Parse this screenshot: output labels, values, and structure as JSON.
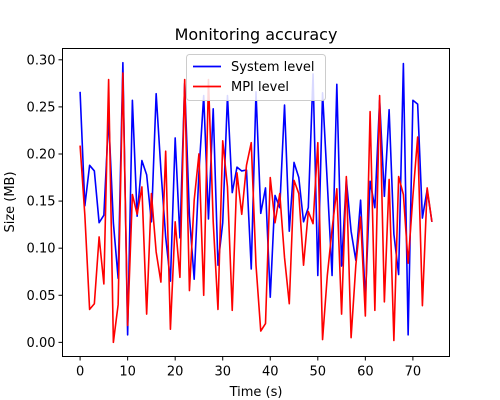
{
  "chart_data": {
    "type": "line",
    "title": "Monitoring accuracy",
    "xlabel": "Time (s)",
    "ylabel": "Size (MB)",
    "xlim": [
      -3.7,
      77.7
    ],
    "ylim": [
      -0.015,
      0.312
    ],
    "xticks": [
      0,
      10,
      20,
      30,
      40,
      50,
      60,
      70
    ],
    "xtick_labels": [
      "0",
      "10",
      "20",
      "30",
      "40",
      "50",
      "60",
      "70"
    ],
    "yticks": [
      0.0,
      0.05,
      0.1,
      0.15,
      0.2,
      0.25,
      0.3
    ],
    "ytick_labels": [
      "0.00",
      "0.05",
      "0.10",
      "0.15",
      "0.20",
      "0.25",
      "0.30"
    ],
    "grid": false,
    "legend_position": "top-center",
    "x": [
      0,
      1,
      2,
      3,
      4,
      5,
      6,
      7,
      8,
      9,
      10,
      11,
      12,
      13,
      14,
      15,
      16,
      17,
      18,
      19,
      20,
      21,
      22,
      23,
      24,
      25,
      26,
      27,
      28,
      29,
      30,
      31,
      32,
      33,
      34,
      35,
      36,
      37,
      38,
      39,
      40,
      41,
      42,
      43,
      44,
      45,
      46,
      47,
      48,
      49,
      50,
      51,
      52,
      53,
      54,
      55,
      56,
      57,
      58,
      59,
      60,
      61,
      62,
      63,
      64,
      65,
      66,
      67,
      68,
      69,
      70,
      71,
      72,
      73,
      74
    ],
    "series": [
      {
        "name": "System level",
        "color": "#0000ff",
        "values": [
          0.266,
          0.145,
          0.188,
          0.182,
          0.127,
          0.135,
          0.239,
          0.127,
          0.068,
          0.297,
          0.008,
          0.257,
          0.134,
          0.193,
          0.178,
          0.128,
          0.264,
          0.183,
          0.112,
          0.065,
          0.217,
          0.111,
          0.275,
          0.134,
          0.067,
          0.181,
          0.262,
          0.131,
          0.248,
          0.082,
          0.127,
          0.262,
          0.159,
          0.186,
          0.182,
          0.183,
          0.078,
          0.266,
          0.137,
          0.164,
          0.048,
          0.156,
          0.143,
          0.252,
          0.118,
          0.191,
          0.175,
          0.128,
          0.143,
          0.285,
          0.071,
          0.265,
          0.169,
          0.071,
          0.274,
          0.081,
          0.173,
          0.118,
          0.087,
          0.151,
          0.045,
          0.171,
          0.143,
          0.257,
          0.155,
          0.247,
          0.115,
          0.072,
          0.296,
          0.008,
          0.257,
          0.253,
          0.132,
          0.162,
          0.128
        ]
      },
      {
        "name": "MPI level",
        "color": "#ff0000",
        "values": [
          0.209,
          0.135,
          0.035,
          0.041,
          0.112,
          0.062,
          0.279,
          0.0,
          0.04,
          0.286,
          0.018,
          0.157,
          0.136,
          0.165,
          0.03,
          0.158,
          0.096,
          0.064,
          0.203,
          0.014,
          0.128,
          0.069,
          0.279,
          0.055,
          0.151,
          0.2,
          0.05,
          0.279,
          0.128,
          0.035,
          0.214,
          0.165,
          0.034,
          0.18,
          0.136,
          0.188,
          0.212,
          0.082,
          0.012,
          0.02,
          0.175,
          0.127,
          0.158,
          0.09,
          0.041,
          0.172,
          0.158,
          0.082,
          0.139,
          0.126,
          0.212,
          0.003,
          0.071,
          0.12,
          0.163,
          0.03,
          0.176,
          0.005,
          0.082,
          0.133,
          0.028,
          0.245,
          0.034,
          0.262,
          0.043,
          0.173,
          0.002,
          0.176,
          0.157,
          0.084,
          0.155,
          0.218,
          0.039,
          0.164,
          0.128
        ]
      }
    ]
  }
}
